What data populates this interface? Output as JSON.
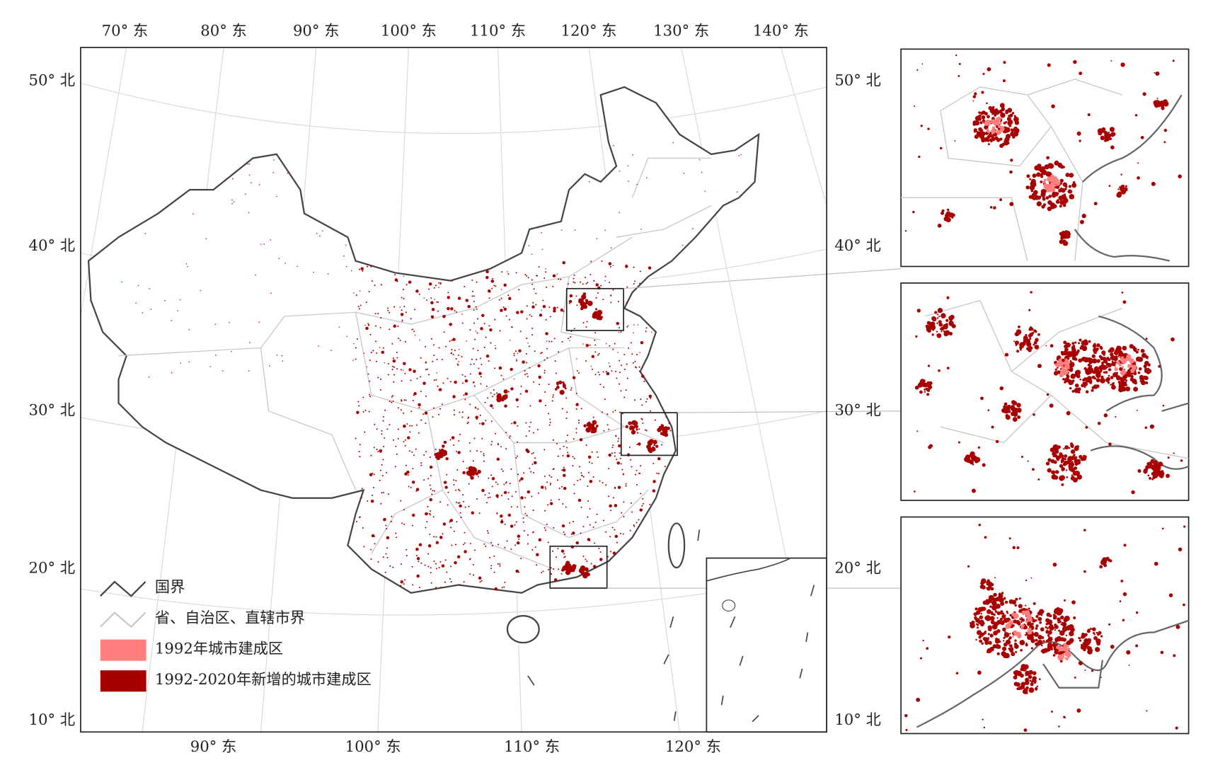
{
  "map": {
    "top_labels": [
      "70° 东",
      "80° 东",
      "90° 东",
      "100° 东",
      "110° 东",
      "120° 东",
      "130° 东",
      "140° 东"
    ],
    "bottom_labels": [
      "90° 东",
      "100° 东",
      "110° 东",
      "120° 东"
    ],
    "left_labels": [
      "50° 北",
      "40° 北",
      "30° 北",
      "20° 北",
      "10° 北"
    ],
    "right_labels": [
      "50° 北",
      "40° 北",
      "30° 北",
      "20° 北",
      "10° 北"
    ]
  },
  "legend": {
    "items": [
      {
        "label": "国界",
        "kind": "line",
        "color": "#444444"
      },
      {
        "label": "省、自治区、直辖市界",
        "kind": "line",
        "color": "#c8c8c8"
      },
      {
        "label": "1992年城市建成区",
        "kind": "patch",
        "color": "#ff7f7f"
      },
      {
        "label": "1992-2020年新增的城市建成区",
        "kind": "patch",
        "color": "#a80000"
      }
    ]
  }
}
